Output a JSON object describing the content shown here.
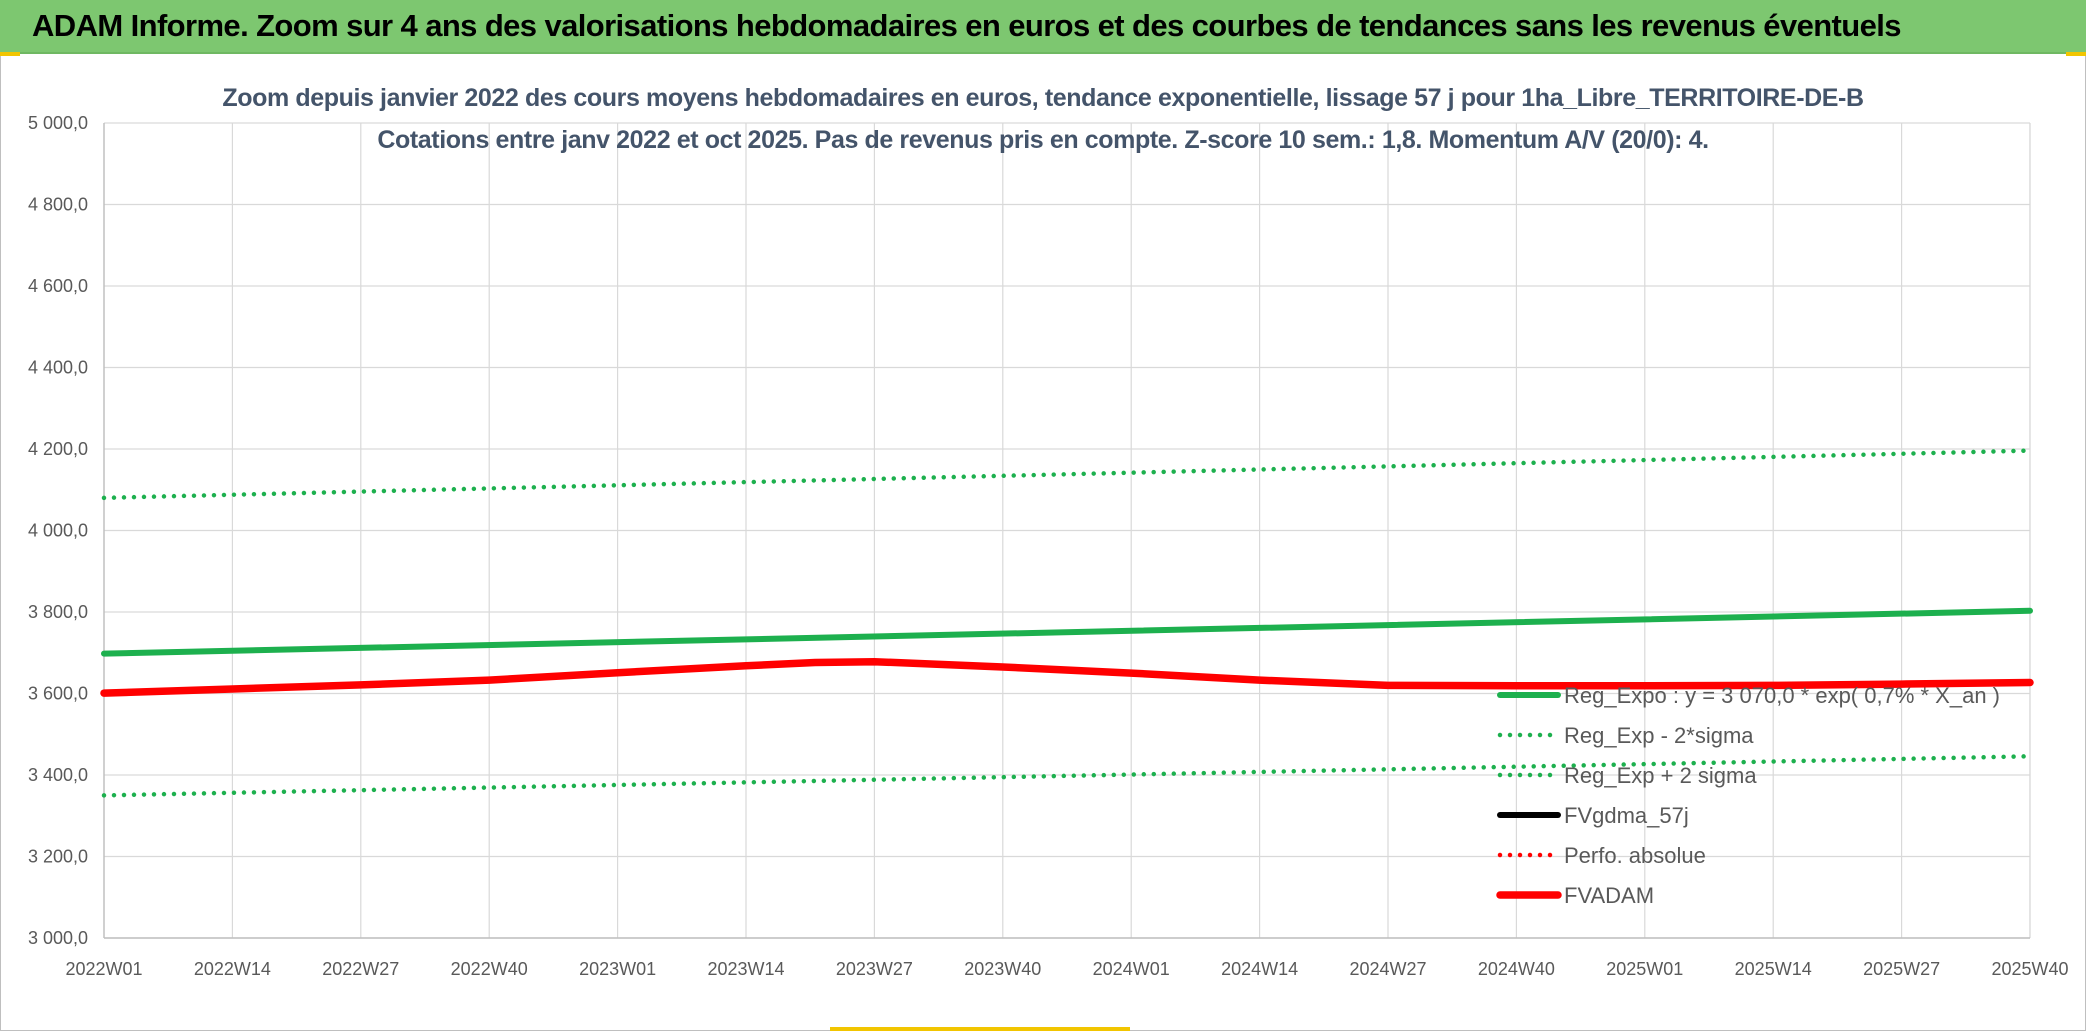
{
  "header": {
    "title": "ADAM Informe. Zoom sur 4 ans des valorisations hebdomadaires en euros et des courbes de tendances sans les revenus éventuels"
  },
  "colors": {
    "banner": "#7dc770",
    "reg_expo": "#1db04e",
    "reg_band": "#1db04e",
    "fvgdma": "#000000",
    "perfo": "#ff0000",
    "fvadam": "#ff0000",
    "grid": "#d9d9d9",
    "title_text": "#44546a"
  },
  "chart_data": {
    "type": "line",
    "title_line1": "Zoom depuis janvier 2022 des cours moyens hebdomadaires en euros, tendance exponentielle, lissage 57 j pour 1ha_Libre_TERRITOIRE-DE-B",
    "title_line2": "Cotations entre janv 2022 et oct 2025. Pas de revenus pris en compte. Z-score 10 sem.: 1,8. Momentum A/V (20/0): 4.",
    "xlabel": "",
    "ylabel": "",
    "ylim": [
      3000,
      5000
    ],
    "yticks": [
      "5 000,0",
      "4 800,0",
      "4 600,0",
      "4 400,0",
      "4 200,0",
      "4 000,0",
      "3 800,0",
      "3 600,0",
      "3 400,0",
      "3 200,0",
      "3 000,0"
    ],
    "ytick_values": [
      5000,
      4800,
      4600,
      4400,
      4200,
      4000,
      3800,
      3600,
      3400,
      3200,
      3000
    ],
    "xticks": [
      "2022W01",
      "2022W14",
      "2022W27",
      "2022W40",
      "2023W01",
      "2023W14",
      "2023W27",
      "2023W40",
      "2024W01",
      "2024W14",
      "2024W27",
      "2024W40",
      "2025W01",
      "2025W14",
      "2025W27",
      "2025W40"
    ],
    "grid": true,
    "legend_position": "bottom-right",
    "legend": [
      {
        "label": "Reg_Expo : y = 3 070,0 * exp( 0,7% * X_an )",
        "color": "#1db04e",
        "style": "solid"
      },
      {
        "label": "Reg_Exp - 2*sigma",
        "color": "#1db04e",
        "style": "dotted"
      },
      {
        "label": "Reg_Exp + 2 sigma",
        "color": "#1db04e",
        "style": "dotted"
      },
      {
        "label": "FVgdma_57j",
        "color": "#000000",
        "style": "solid"
      },
      {
        "label": "Perfo. absolue",
        "color": "#ff0000",
        "style": "dotted"
      },
      {
        "label": "FVADAM",
        "color": "#ff0000",
        "style": "solid-thick"
      }
    ],
    "series": [
      {
        "name": "Reg_Expo : y = 3 070,0 * exp( 0,7% * X_an )",
        "style": "solid",
        "color": "#1db04e",
        "x": [
          0,
          195
        ],
        "y": [
          3698,
          3803
        ]
      },
      {
        "name": "Reg_Exp - 2*sigma",
        "style": "dotted",
        "color": "#1db04e",
        "x": [
          0,
          195
        ],
        "y": [
          4080,
          4196
        ]
      },
      {
        "name": "Reg_Exp + 2 sigma",
        "style": "dotted",
        "color": "#1db04e",
        "x": [
          0,
          195
        ],
        "y": [
          3350,
          3446
        ]
      },
      {
        "name": "FVADAM",
        "style": "solid-thick",
        "color": "#ff0000",
        "x": [
          0,
          13,
          26,
          39,
          52,
          65,
          72,
          78,
          91,
          104,
          117,
          130,
          143,
          156,
          169,
          182,
          195
        ],
        "y": [
          3601,
          3611,
          3621,
          3633,
          3651,
          3668,
          3676,
          3678,
          3665,
          3650,
          3633,
          3620,
          3619,
          3619,
          3620,
          3623,
          3627
        ]
      }
    ]
  }
}
